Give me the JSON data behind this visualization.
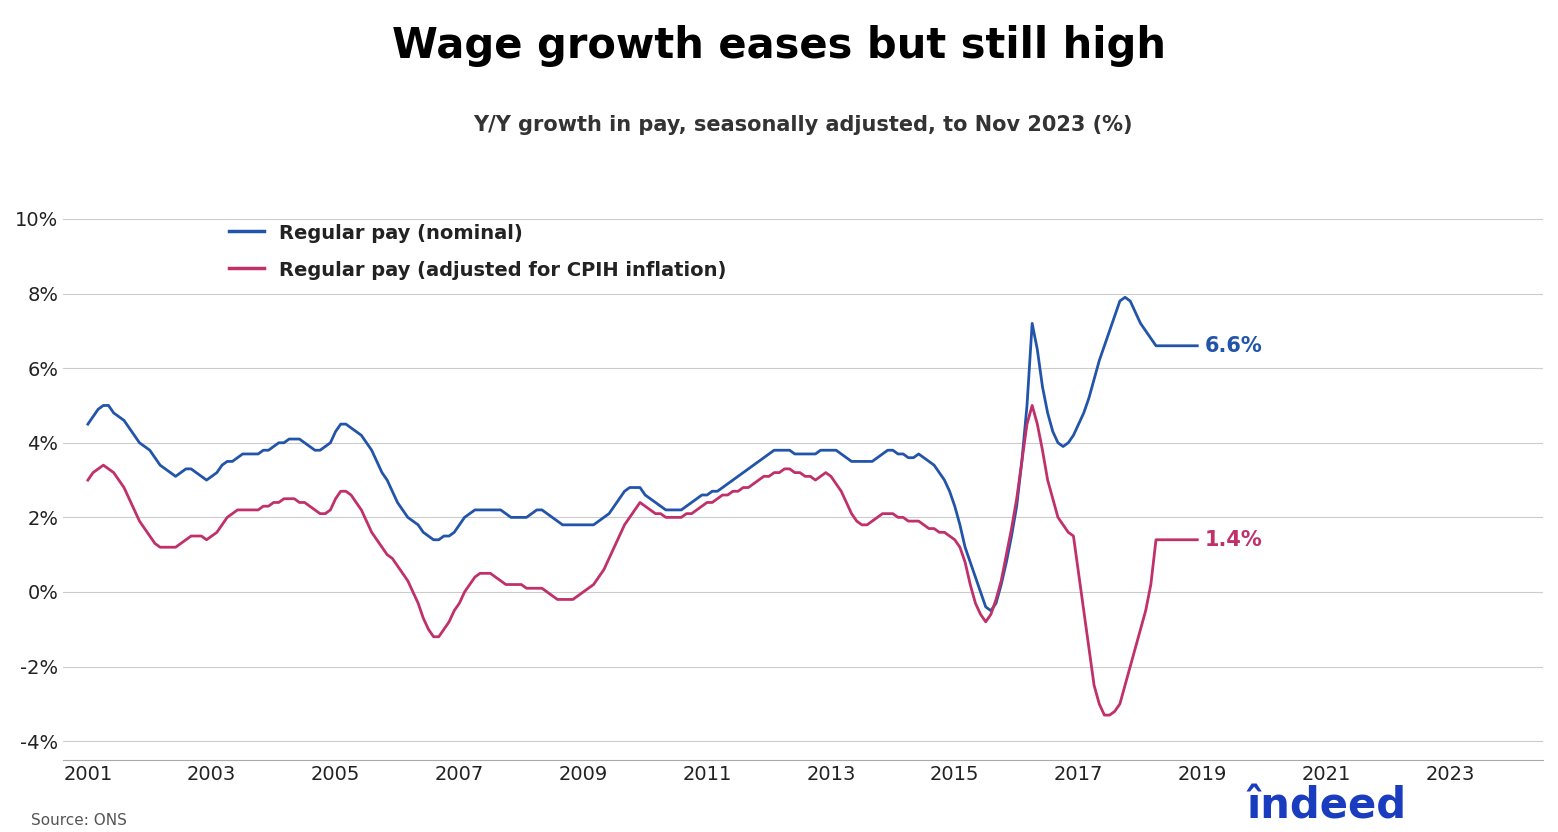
{
  "title": "Wage growth eases but still high",
  "subtitle": "Y/Y growth in pay, seasonally adjusted, to Nov 2023 (%)",
  "source": "Source: ONS",
  "nominal_label": "Regular pay (nominal)",
  "real_label": "Regular pay (adjusted for CPIH inflation)",
  "nominal_color": "#2255aa",
  "real_color": "#c0306a",
  "nominal_end_label": "6.6%",
  "real_end_label": "1.4%",
  "ylim": [
    -4.5,
    10.5
  ],
  "yticks": [
    -4,
    -2,
    0,
    2,
    4,
    6,
    8,
    10
  ],
  "ytick_labels": [
    "-4%",
    "-2%",
    "0%",
    "2%",
    "4%",
    "6%",
    "8%",
    "10%"
  ],
  "xtick_years": [
    2001,
    2003,
    2005,
    2007,
    2009,
    2011,
    2013,
    2015,
    2017,
    2019,
    2021,
    2023
  ],
  "nominal_data": [
    4.5,
    4.7,
    4.9,
    5.0,
    5.0,
    4.8,
    4.7,
    4.6,
    4.4,
    4.2,
    4.0,
    3.9,
    3.8,
    3.6,
    3.4,
    3.3,
    3.2,
    3.1,
    3.2,
    3.3,
    3.3,
    3.2,
    3.1,
    3.0,
    3.1,
    3.2,
    3.4,
    3.5,
    3.5,
    3.6,
    3.7,
    3.7,
    3.7,
    3.7,
    3.8,
    3.8,
    3.9,
    4.0,
    4.0,
    4.1,
    4.1,
    4.1,
    4.0,
    3.9,
    3.8,
    3.8,
    3.9,
    4.0,
    4.3,
    4.5,
    4.5,
    4.4,
    4.3,
    4.2,
    4.0,
    3.8,
    3.5,
    3.2,
    3.0,
    2.7,
    2.4,
    2.2,
    2.0,
    1.9,
    1.8,
    1.6,
    1.5,
    1.4,
    1.4,
    1.5,
    1.5,
    1.6,
    1.8,
    2.0,
    2.1,
    2.2,
    2.2,
    2.2,
    2.2,
    2.2,
    2.2,
    2.1,
    2.0,
    2.0,
    2.0,
    2.0,
    2.1,
    2.2,
    2.2,
    2.1,
    2.0,
    1.9,
    1.8,
    1.8,
    1.8,
    1.8,
    1.8,
    1.8,
    1.8,
    1.9,
    2.0,
    2.1,
    2.3,
    2.5,
    2.7,
    2.8,
    2.8,
    2.8,
    2.6,
    2.5,
    2.4,
    2.3,
    2.2,
    2.2,
    2.2,
    2.2,
    2.3,
    2.4,
    2.5,
    2.6,
    2.6,
    2.7,
    2.7,
    2.8,
    2.9,
    3.0,
    3.1,
    3.2,
    3.3,
    3.4,
    3.5,
    3.6,
    3.7,
    3.8,
    3.8,
    3.8,
    3.8,
    3.7,
    3.7,
    3.7,
    3.7,
    3.7,
    3.8,
    3.8,
    3.8,
    3.8,
    3.7,
    3.6,
    3.5,
    3.5,
    3.5,
    3.5,
    3.5,
    3.6,
    3.7,
    3.8,
    3.8,
    3.7,
    3.7,
    3.6,
    3.6,
    3.7,
    3.6,
    3.5,
    3.4,
    3.2,
    3.0,
    2.7,
    2.3,
    1.8,
    1.2,
    0.8,
    0.4,
    0.0,
    -0.4,
    -0.5,
    -0.3,
    0.2,
    0.8,
    1.5,
    2.3,
    3.5,
    5.0,
    7.2,
    6.5,
    5.5,
    4.8,
    4.3,
    4.0,
    3.9,
    4.0,
    4.2,
    4.5,
    4.8,
    5.2,
    5.7,
    6.2,
    6.6,
    7.0,
    7.4,
    7.8,
    7.9,
    7.8,
    7.5,
    7.2,
    7.0,
    6.8,
    6.6,
    6.6,
    6.6,
    6.6,
    6.6,
    6.6,
    6.6,
    6.6,
    6.6
  ],
  "real_data": [
    3.0,
    3.2,
    3.3,
    3.4,
    3.3,
    3.2,
    3.0,
    2.8,
    2.5,
    2.2,
    1.9,
    1.7,
    1.5,
    1.3,
    1.2,
    1.2,
    1.2,
    1.2,
    1.3,
    1.4,
    1.5,
    1.5,
    1.5,
    1.4,
    1.5,
    1.6,
    1.8,
    2.0,
    2.1,
    2.2,
    2.2,
    2.2,
    2.2,
    2.2,
    2.3,
    2.3,
    2.4,
    2.4,
    2.5,
    2.5,
    2.5,
    2.4,
    2.4,
    2.3,
    2.2,
    2.1,
    2.1,
    2.2,
    2.5,
    2.7,
    2.7,
    2.6,
    2.4,
    2.2,
    1.9,
    1.6,
    1.4,
    1.2,
    1.0,
    0.9,
    0.7,
    0.5,
    0.3,
    0.0,
    -0.3,
    -0.7,
    -1.0,
    -1.2,
    -1.2,
    -1.0,
    -0.8,
    -0.5,
    -0.3,
    0.0,
    0.2,
    0.4,
    0.5,
    0.5,
    0.5,
    0.4,
    0.3,
    0.2,
    0.2,
    0.2,
    0.2,
    0.1,
    0.1,
    0.1,
    0.1,
    0.0,
    -0.1,
    -0.2,
    -0.2,
    -0.2,
    -0.2,
    -0.1,
    0.0,
    0.1,
    0.2,
    0.4,
    0.6,
    0.9,
    1.2,
    1.5,
    1.8,
    2.0,
    2.2,
    2.4,
    2.3,
    2.2,
    2.1,
    2.1,
    2.0,
    2.0,
    2.0,
    2.0,
    2.1,
    2.1,
    2.2,
    2.3,
    2.4,
    2.4,
    2.5,
    2.6,
    2.6,
    2.7,
    2.7,
    2.8,
    2.8,
    2.9,
    3.0,
    3.1,
    3.1,
    3.2,
    3.2,
    3.3,
    3.3,
    3.2,
    3.2,
    3.1,
    3.1,
    3.0,
    3.1,
    3.2,
    3.1,
    2.9,
    2.7,
    2.4,
    2.1,
    1.9,
    1.8,
    1.8,
    1.9,
    2.0,
    2.1,
    2.1,
    2.1,
    2.0,
    2.0,
    1.9,
    1.9,
    1.9,
    1.8,
    1.7,
    1.7,
    1.6,
    1.6,
    1.5,
    1.4,
    1.2,
    0.8,
    0.2,
    -0.3,
    -0.6,
    -0.8,
    -0.6,
    -0.2,
    0.3,
    1.0,
    1.7,
    2.5,
    3.5,
    4.5,
    5.0,
    4.5,
    3.8,
    3.0,
    2.5,
    2.0,
    1.8,
    1.6,
    1.5,
    0.5,
    -0.5,
    -1.5,
    -2.5,
    -3.0,
    -3.3,
    -3.3,
    -3.2,
    -3.0,
    -2.5,
    -2.0,
    -1.5,
    -1.0,
    -0.5,
    0.2,
    1.4,
    1.4,
    1.4,
    1.4,
    1.4,
    1.4,
    1.4,
    1.4,
    1.4
  ],
  "start_year": 2001,
  "end_year": 2023.917
}
